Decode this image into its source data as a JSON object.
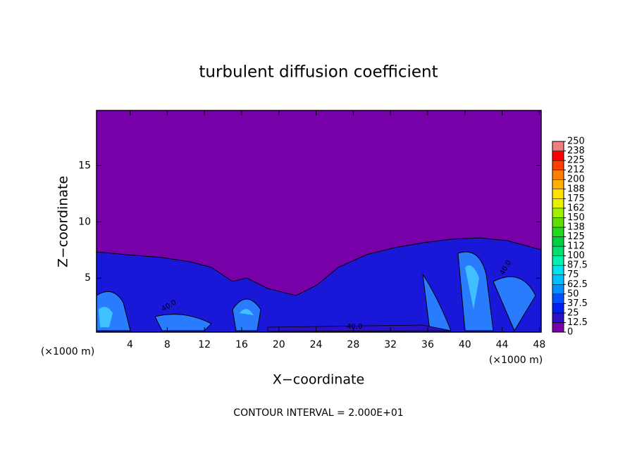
{
  "chart_data": {
    "type": "contour",
    "title": "turbulent diffusion coefficient",
    "x_label": "X−coordinate",
    "y_label": "Z−coordinate",
    "x_unit": "(×1000 m)",
    "y_unit": "(×1000 m)",
    "footer": "CONTOUR INTERVAL = 2.000E+01",
    "contour_labels": [
      "40.0",
      "40.0",
      "40.0"
    ],
    "xlim": [
      0.4,
      48.2
    ],
    "xticks": [
      4,
      8,
      12,
      16,
      20,
      24,
      28,
      32,
      36,
      40,
      44,
      48
    ],
    "ylim": [
      0.2,
      19.9
    ],
    "yticks": [
      5,
      10,
      15
    ],
    "colorbar": {
      "levels": [
        0,
        {
          "value": 12.5,
          "label": "12.5"
        },
        25,
        {
          "value": 37.5,
          "label": "37.5"
        },
        50,
        {
          "value": 62.5,
          "label": "62.5"
        },
        75,
        {
          "value": 87.5,
          "label": "87.5"
        },
        100,
        {
          "value": 112.5,
          "label": "112"
        },
        125,
        {
          "value": 137.5,
          "label": "138"
        },
        150,
        {
          "value": 162.5,
          "label": "162"
        },
        175,
        {
          "value": 187.5,
          "label": "188"
        },
        200,
        {
          "value": 212.5,
          "label": "212"
        },
        225,
        {
          "value": 237.5,
          "label": "238"
        },
        250
      ],
      "colors": [
        "#7800a8",
        "#2a10c8",
        "#0020f0",
        "#0050ff",
        "#0090ff",
        "#00c0ff",
        "#00e0f0",
        "#00f0b0",
        "#00e070",
        "#00d040",
        "#20d820",
        "#60e000",
        "#a0f000",
        "#e8f000",
        "#ffe000",
        "#ffb000",
        "#ff8000",
        "#ff4000",
        "#ff0000",
        "#f08080"
      ]
    }
  }
}
